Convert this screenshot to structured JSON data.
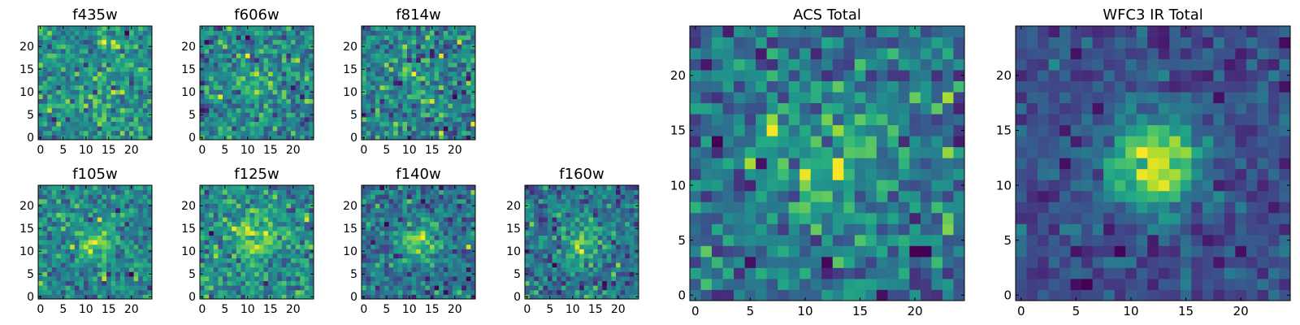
{
  "chart_data": [
    {
      "type": "heatmap",
      "title": "f435w",
      "colormap": "viridis",
      "grid_size": 25,
      "xlim": [
        0,
        25
      ],
      "ylim": [
        0,
        25
      ],
      "xticks": [
        0,
        5,
        10,
        15,
        20
      ],
      "yticks": [
        0,
        5,
        10,
        15,
        20
      ],
      "center_brightness": 0.05,
      "blob_width": 4.5,
      "noise_amplitude": 1.0,
      "noise_seed": 11
    },
    {
      "type": "heatmap",
      "title": "f606w",
      "colormap": "viridis",
      "grid_size": 25,
      "xlim": [
        0,
        25
      ],
      "ylim": [
        0,
        25
      ],
      "xticks": [
        0,
        5,
        10,
        15,
        20
      ],
      "yticks": [
        0,
        5,
        10,
        15,
        20
      ],
      "center_brightness": 0.25,
      "blob_width": 3.5,
      "noise_amplitude": 1.0,
      "noise_seed": 23
    },
    {
      "type": "heatmap",
      "title": "f814w",
      "colormap": "viridis",
      "grid_size": 25,
      "xlim": [
        0,
        25
      ],
      "ylim": [
        0,
        25
      ],
      "xticks": [
        0,
        5,
        10,
        15,
        20
      ],
      "yticks": [
        0,
        5,
        10,
        15,
        20
      ],
      "center_brightness": 0.15,
      "blob_width": 3.5,
      "noise_amplitude": 1.0,
      "noise_seed": 37
    },
    {
      "type": "heatmap",
      "title": "f105w",
      "colormap": "viridis",
      "grid_size": 25,
      "xlim": [
        0,
        25
      ],
      "ylim": [
        0,
        25
      ],
      "xticks": [
        0,
        5,
        10,
        15,
        20
      ],
      "yticks": [
        0,
        5,
        10,
        15,
        20
      ],
      "center_brightness": 0.6,
      "blob_width": 3.0,
      "noise_amplitude": 0.8,
      "noise_seed": 41
    },
    {
      "type": "heatmap",
      "title": "f125w",
      "colormap": "viridis",
      "grid_size": 25,
      "xlim": [
        0,
        25
      ],
      "ylim": [
        0,
        25
      ],
      "xticks": [
        0,
        5,
        10,
        15,
        20
      ],
      "yticks": [
        0,
        5,
        10,
        15,
        20
      ],
      "center_brightness": 0.6,
      "blob_width": 3.5,
      "noise_amplitude": 0.8,
      "noise_seed": 53
    },
    {
      "type": "heatmap",
      "title": "f140w",
      "colormap": "viridis",
      "grid_size": 25,
      "xlim": [
        0,
        25
      ],
      "ylim": [
        0,
        25
      ],
      "xticks": [
        0,
        5,
        10,
        15,
        20
      ],
      "yticks": [
        0,
        5,
        10,
        15,
        20
      ],
      "center_brightness": 0.8,
      "blob_width": 3.0,
      "noise_amplitude": 0.8,
      "noise_seed": 67
    },
    {
      "type": "heatmap",
      "title": "f160w",
      "colormap": "viridis",
      "grid_size": 25,
      "xlim": [
        0,
        25
      ],
      "ylim": [
        0,
        25
      ],
      "xticks": [
        0,
        5,
        10,
        15,
        20
      ],
      "yticks": [
        0,
        5,
        10,
        15,
        20
      ],
      "center_brightness": 0.7,
      "blob_width": 3.0,
      "noise_amplitude": 0.8,
      "noise_seed": 79
    },
    {
      "type": "heatmap",
      "title": "ACS Total",
      "colormap": "viridis",
      "grid_size": 25,
      "xlim": [
        0,
        25
      ],
      "ylim": [
        0,
        25
      ],
      "xticks": [
        0,
        5,
        10,
        15,
        20
      ],
      "yticks": [
        0,
        5,
        10,
        15,
        20
      ],
      "center_brightness": 0.35,
      "blob_width": 4.0,
      "noise_amplitude": 0.55,
      "noise_seed": 97
    },
    {
      "type": "heatmap",
      "title": "WFC3 IR Total",
      "colormap": "viridis",
      "grid_size": 25,
      "xlim": [
        0,
        25
      ],
      "ylim": [
        0,
        25
      ],
      "xticks": [
        0,
        5,
        10,
        15,
        20
      ],
      "yticks": [
        0,
        5,
        10,
        15,
        20
      ],
      "center_brightness": 1.2,
      "blob_width": 2.8,
      "noise_amplitude": 0.45,
      "noise_seed": 113
    }
  ],
  "colors": {
    "axes": "#000000",
    "background": "#ffffff"
  }
}
